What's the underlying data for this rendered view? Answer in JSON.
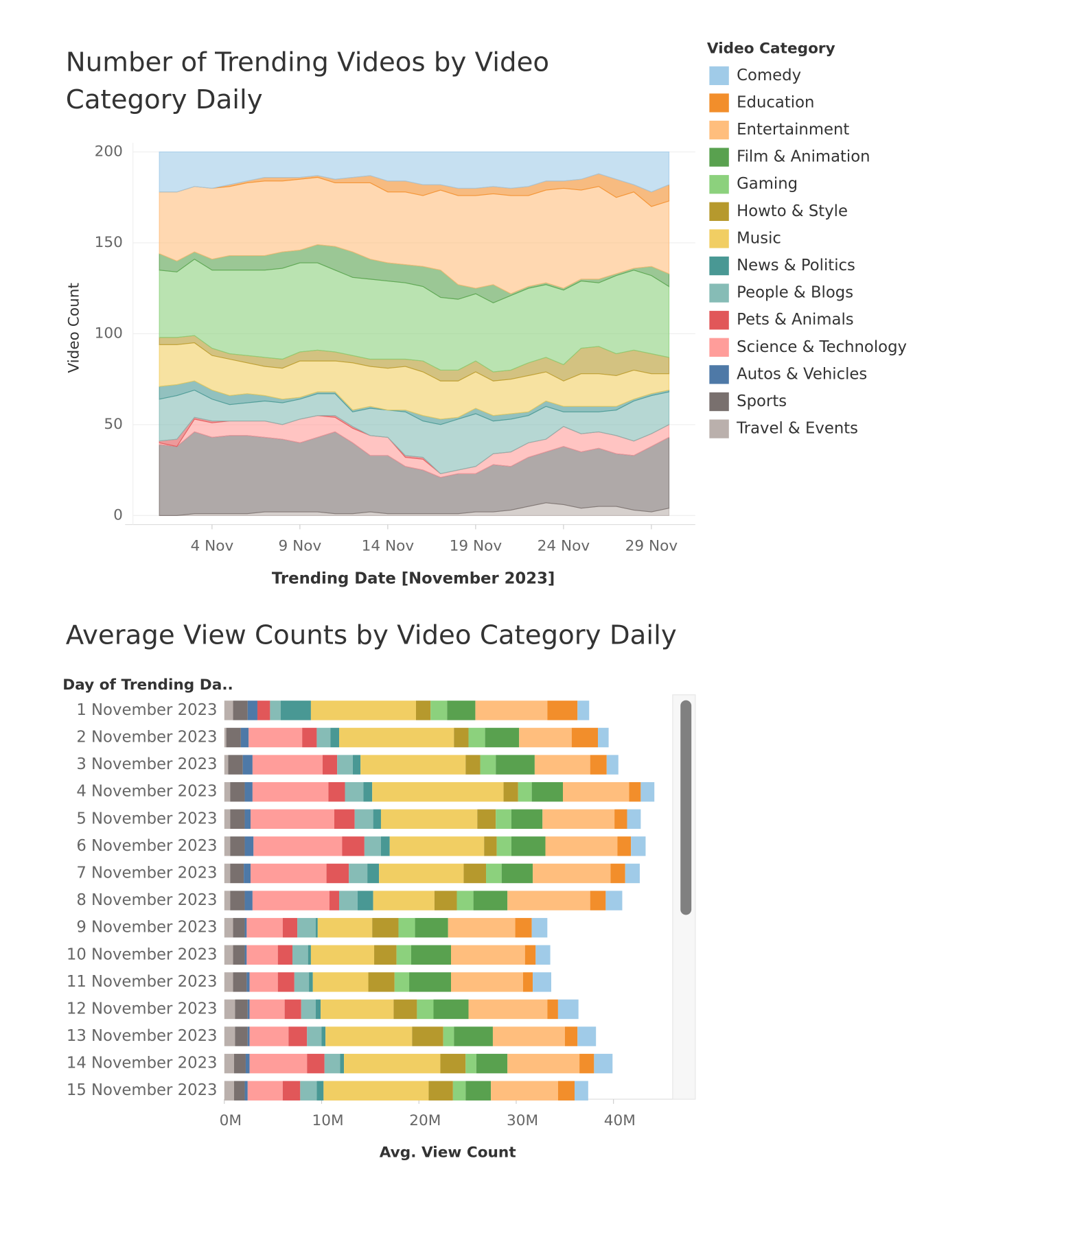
{
  "chart_data": [
    {
      "type": "area",
      "title": "Number of Trending Videos by Video Category Daily",
      "x_label": "Trending Date [November 2023]",
      "y_label": "Video Count",
      "legend_title": "Video Category",
      "stacked": true,
      "grid": true,
      "x": [
        "2023-11-01",
        "2023-11-02",
        "2023-11-03",
        "2023-11-04",
        "2023-11-05",
        "2023-11-06",
        "2023-11-07",
        "2023-11-08",
        "2023-11-09",
        "2023-11-10",
        "2023-11-11",
        "2023-11-12",
        "2023-11-13",
        "2023-11-14",
        "2023-11-15",
        "2023-11-16",
        "2023-11-17",
        "2023-11-18",
        "2023-11-19",
        "2023-11-20",
        "2023-11-21",
        "2023-11-22",
        "2023-11-23",
        "2023-11-24",
        "2023-11-25",
        "2023-11-26",
        "2023-11-27",
        "2023-11-28",
        "2023-11-29",
        "2023-11-30"
      ],
      "xlim": [
        "2023-10-30T12:00:00Z",
        "2023-12-01T12:00:00Z"
      ],
      "xticks": [
        {
          "value": "2023-11-04",
          "label": "4 Nov"
        },
        {
          "value": "2023-11-09",
          "label": "9 Nov"
        },
        {
          "value": "2023-11-14",
          "label": "14 Nov"
        },
        {
          "value": "2023-11-19",
          "label": "19 Nov"
        },
        {
          "value": "2023-11-24",
          "label": "24 Nov"
        },
        {
          "value": "2023-11-29",
          "label": "29 Nov"
        }
      ],
      "ylim": [
        -5,
        205
      ],
      "yticks": [
        0,
        50,
        100,
        150,
        200
      ],
      "series": [
        {
          "name": "Comedy",
          "color": "#a0cbe8",
          "values": [
            22,
            22,
            19,
            20,
            18,
            16,
            14,
            14,
            14,
            13,
            15,
            14,
            13,
            16,
            16,
            18,
            18,
            20,
            20,
            19,
            20,
            19,
            16,
            16,
            15,
            12,
            15,
            18,
            22,
            18
          ]
        },
        {
          "name": "Education",
          "color": "#f28e2b",
          "values": [
            0,
            0,
            0,
            0,
            1,
            1,
            2,
            2,
            1,
            1,
            2,
            3,
            4,
            6,
            6,
            6,
            3,
            4,
            4,
            4,
            4,
            5,
            5,
            4,
            6,
            7,
            10,
            4,
            8,
            9
          ]
        },
        {
          "name": "Entertainment",
          "color": "#ffbe7d",
          "values": [
            34,
            38,
            36,
            39,
            38,
            40,
            41,
            39,
            39,
            37,
            35,
            38,
            42,
            39,
            40,
            39,
            44,
            49,
            51,
            50,
            54,
            50,
            51,
            55,
            49,
            51,
            42,
            42,
            33,
            40
          ]
        },
        {
          "name": "Film & Animation",
          "color": "#59a14f",
          "values": [
            9,
            6,
            4,
            6,
            8,
            8,
            8,
            9,
            7,
            10,
            13,
            14,
            11,
            10,
            10,
            11,
            15,
            8,
            3,
            10,
            1,
            1,
            1,
            1,
            1,
            2,
            1,
            1,
            5,
            7
          ]
        },
        {
          "name": "Gaming",
          "color": "#8cd17d",
          "values": [
            37,
            36,
            42,
            43,
            46,
            47,
            48,
            50,
            49,
            48,
            45,
            43,
            44,
            43,
            42,
            41,
            40,
            39,
            37,
            38,
            41,
            41,
            40,
            41,
            37,
            35,
            43,
            44,
            43,
            39
          ]
        },
        {
          "name": "Howto & Style",
          "color": "#b6992d",
          "values": [
            4,
            4,
            4,
            4,
            3,
            4,
            5,
            5,
            5,
            6,
            5,
            4,
            4,
            5,
            4,
            6,
            6,
            6,
            6,
            5,
            5,
            7,
            8,
            9,
            14,
            15,
            12,
            11,
            11,
            9
          ]
        },
        {
          "name": "Music",
          "color": "#f1ce63",
          "values": [
            23,
            22,
            21,
            19,
            20,
            17,
            16,
            17,
            20,
            17,
            17,
            26,
            22,
            23,
            24,
            24,
            21,
            20,
            20,
            19,
            19,
            20,
            16,
            14,
            18,
            18,
            17,
            16,
            11,
            9
          ]
        },
        {
          "name": "News & Politics",
          "color": "#499894",
          "values": [
            7,
            6,
            5,
            5,
            5,
            5,
            3,
            2,
            1,
            1,
            1,
            1,
            1,
            0,
            1,
            3,
            3,
            1,
            3,
            3,
            3,
            2,
            3,
            3,
            3,
            3,
            2,
            1,
            1,
            1
          ]
        },
        {
          "name": "People & Blogs",
          "color": "#86bcb6",
          "values": [
            23,
            24,
            15,
            12,
            9,
            10,
            11,
            12,
            11,
            12,
            12,
            8,
            15,
            15,
            24,
            20,
            27,
            28,
            29,
            18,
            18,
            15,
            18,
            8,
            12,
            11,
            14,
            22,
            21,
            18
          ]
        },
        {
          "name": "Pets & Animals",
          "color": "#e15759",
          "values": [
            1,
            4,
            1,
            1,
            0,
            0,
            0,
            0,
            0,
            0,
            1,
            1,
            0,
            0,
            1,
            1,
            0,
            0,
            0,
            0,
            0,
            0,
            0,
            0,
            0,
            0,
            0,
            0,
            0,
            0
          ]
        },
        {
          "name": "Science & Technology",
          "color": "#ff9d9a",
          "values": [
            1,
            0,
            7,
            8,
            8,
            8,
            9,
            8,
            13,
            12,
            8,
            8,
            11,
            10,
            5,
            6,
            2,
            2,
            4,
            6,
            8,
            8,
            7,
            11,
            10,
            9,
            10,
            8,
            7,
            7
          ]
        },
        {
          "name": "Autos & Vehicles",
          "color": "#4e79a7",
          "values": [
            0,
            0,
            0,
            0,
            0,
            0,
            0,
            0,
            0,
            0,
            0,
            0,
            0,
            0,
            0,
            0,
            0,
            0,
            0,
            0,
            0,
            0,
            0,
            0,
            0,
            0,
            0,
            0,
            0,
            0
          ]
        },
        {
          "name": "Sports",
          "color": "#79706e",
          "values": [
            39,
            38,
            45,
            42,
            43,
            43,
            41,
            40,
            38,
            41,
            45,
            39,
            31,
            32,
            26,
            24,
            20,
            22,
            21,
            26,
            24,
            27,
            28,
            32,
            31,
            32,
            29,
            30,
            36,
            39
          ]
        },
        {
          "name": "Travel & Events",
          "color": "#bab0ac",
          "values": [
            0,
            0,
            1,
            1,
            1,
            1,
            2,
            2,
            2,
            2,
            1,
            1,
            2,
            1,
            1,
            1,
            1,
            1,
            2,
            2,
            3,
            5,
            7,
            6,
            4,
            5,
            5,
            3,
            2,
            4
          ]
        }
      ]
    },
    {
      "type": "bar",
      "orientation": "horizontal",
      "stacked": true,
      "title": "Average View Counts by Video Category Daily",
      "row_header": "Day of Trending Da..",
      "x_label": "Avg. View Count",
      "categories": [
        "1 November 2023",
        "2 November 2023",
        "3 November 2023",
        "4 November 2023",
        "5 November 2023",
        "6 November 2023",
        "7 November 2023",
        "8 November 2023",
        "9 November 2023",
        "10 November 2023",
        "11 November 2023",
        "12 November 2023",
        "13 November 2023",
        "14 November 2023",
        "15 November 2023"
      ],
      "xlim": [
        0,
        46
      ],
      "xticks": [
        {
          "value": 0,
          "label": "0M"
        },
        {
          "value": 10,
          "label": "10M"
        },
        {
          "value": 20,
          "label": "20M"
        },
        {
          "value": 30,
          "label": "30M"
        },
        {
          "value": 40,
          "label": "40M"
        }
      ],
      "series": [
        {
          "values": [
            1.2,
            1.1,
            1.2,
            1.4,
            1.4,
            1.5,
            1.5,
            1.7,
            1.6,
            1.5,
            1.9,
            2.1,
            1.9,
            1.9,
            1.4
          ]
        },
        {
          "values": [
            3.1,
            2.7,
            1.7,
            1.2,
            1.3,
            1.4,
            1.5,
            1.6,
            1.7,
            1.1,
            1.0,
            1.1,
            1.3,
            1.5,
            1.7
          ]
        },
        {
          "values": [
            7.4,
            5.4,
            5.7,
            6.8,
            7.4,
            7.4,
            8.0,
            8.5,
            6.9,
            7.6,
            7.4,
            8.1,
            7.4,
            7.4,
            6.9
          ]
        },
        {
          "values": [
            2.9,
            3.5,
            4.0,
            3.2,
            3.2,
            3.5,
            3.2,
            3.5,
            3.4,
            4.1,
            4.3,
            3.6,
            4.0,
            3.2,
            2.6
          ]
        },
        {
          "values": [
            1.7,
            1.7,
            1.6,
            1.4,
            1.6,
            1.5,
            1.6,
            1.7,
            1.7,
            1.5,
            1.5,
            1.7,
            1.1,
            1.1,
            1.3
          ]
        },
        {
          "values": [
            1.5,
            1.5,
            1.5,
            1.5,
            1.9,
            1.3,
            2.3,
            2.3,
            2.7,
            2.3,
            2.7,
            2.4,
            3.2,
            2.6,
            2.5
          ]
        },
        {
          "values": [
            10.8,
            11.8,
            10.8,
            13.5,
            9.9,
            9.7,
            8.7,
            6.3,
            5.6,
            6.5,
            5.7,
            7.5,
            8.9,
            9.9,
            10.8
          ]
        },
        {
          "values": [
            3.1,
            0.9,
            0.8,
            0.9,
            0.8,
            0.9,
            1.2,
            1.6,
            0.2,
            0.3,
            0.4,
            0.5,
            0.4,
            0.4,
            0.7
          ]
        },
        {
          "values": [
            1.1,
            1.4,
            1.6,
            1.9,
            1.9,
            1.7,
            1.9,
            1.9,
            1.9,
            1.6,
            1.5,
            1.5,
            1.5,
            1.6,
            1.7
          ]
        },
        {
          "values": [
            1.3,
            1.5,
            1.5,
            1.7,
            2.1,
            2.3,
            2.3,
            1.0,
            1.5,
            1.5,
            1.7,
            1.7,
            1.9,
            1.8,
            1.8
          ]
        },
        {
          "values": [
            0,
            5.5,
            7.2,
            7.8,
            8.6,
            9.1,
            7.8,
            7.9,
            3.7,
            3.2,
            2.9,
            3.6,
            4.0,
            5.9,
            3.6
          ]
        },
        {
          "values": [
            1.0,
            0.8,
            1.0,
            0.8,
            0.6,
            0.9,
            0.7,
            0.8,
            0.2,
            0.2,
            0.3,
            0.2,
            0.2,
            0.4,
            0.3
          ]
        },
        {
          "values": [
            1.5,
            1.5,
            1.5,
            1.5,
            1.5,
            1.5,
            1.4,
            1.5,
            1.2,
            1.2,
            1.4,
            1.3,
            1.3,
            1.2,
            1.1
          ]
        },
        {
          "values": [
            0.9,
            0.2,
            0.4,
            0.6,
            0.6,
            0.6,
            0.6,
            0.6,
            0.9,
            0.9,
            0.9,
            1.1,
            1.1,
            1.0,
            1.0
          ]
        }
      ]
    }
  ]
}
